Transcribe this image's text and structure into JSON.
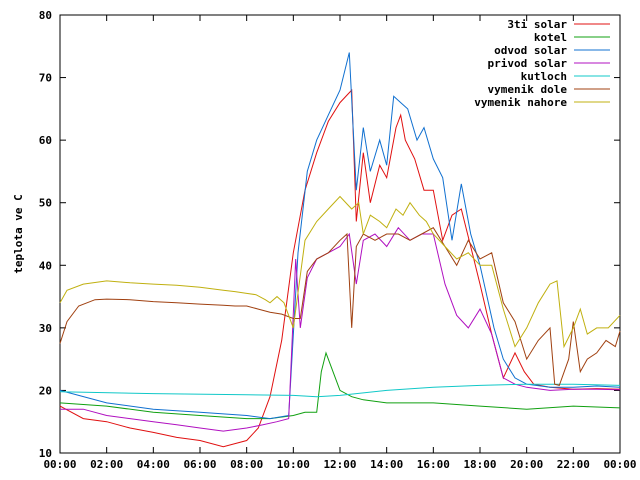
{
  "chart_data": {
    "type": "line",
    "title": "",
    "xlabel": "",
    "ylabel": "teplota ve C",
    "xlim": [
      0,
      24
    ],
    "ylim": [
      10,
      80
    ],
    "x_ticks": [
      "00:00",
      "02:00",
      "04:00",
      "06:00",
      "08:00",
      "10:00",
      "12:00",
      "14:00",
      "16:00",
      "18:00",
      "20:00",
      "22:00",
      "00:00"
    ],
    "y_ticks": [
      10,
      20,
      30,
      40,
      50,
      60,
      70,
      80
    ],
    "grid": false,
    "legend_position": "top-right",
    "series": [
      {
        "name": "3ti solar",
        "color": "#e01010",
        "x": [
          0,
          1,
          2,
          3,
          4,
          5,
          6,
          7,
          8,
          8.5,
          9,
          9.5,
          10,
          10.5,
          11,
          11.5,
          12,
          12.5,
          12.7,
          13,
          13.3,
          13.7,
          14,
          14.4,
          14.6,
          14.8,
          15.2,
          15.6,
          16,
          16.4,
          16.8,
          17.2,
          17.6,
          18,
          18.5,
          19,
          19.5,
          19.9,
          20.3,
          21,
          22,
          23,
          24
        ],
        "y": [
          17.5,
          15.5,
          15,
          14,
          13.3,
          12.5,
          12,
          11,
          12,
          14,
          19,
          28,
          42,
          52,
          58,
          63,
          66,
          68,
          47,
          58,
          50,
          56,
          54,
          62,
          64,
          60,
          57,
          52,
          52,
          44,
          48,
          49,
          43,
          37,
          29,
          22,
          26,
          23,
          21,
          20.5,
          20.2,
          20.3,
          20.2
        ]
      },
      {
        "name": "kotel",
        "color": "#10a010",
        "x": [
          0,
          2,
          4,
          6,
          8,
          9,
          10,
          10.5,
          11,
          11.2,
          11.4,
          11.7,
          12,
          12.5,
          13,
          14,
          16,
          18,
          20,
          22,
          24
        ],
        "y": [
          18,
          17.5,
          16.5,
          16,
          15.5,
          15.5,
          16,
          16.5,
          16.5,
          23,
          26,
          23,
          20,
          19,
          18.5,
          18,
          18,
          17.5,
          17,
          17.5,
          17.2
        ]
      },
      {
        "name": "odvod solar",
        "color": "#1070d0",
        "x": [
          0,
          2,
          4,
          6,
          8,
          9,
          9.8,
          10.2,
          10.6,
          11,
          11.5,
          12,
          12.4,
          12.7,
          13,
          13.3,
          13.7,
          14,
          14.3,
          14.6,
          14.9,
          15.3,
          15.6,
          16,
          16.4,
          16.8,
          17.2,
          17.6,
          18,
          18.6,
          19,
          19.5,
          20,
          21,
          22,
          23,
          24
        ],
        "y": [
          20,
          18,
          17,
          16.5,
          16,
          15.5,
          16,
          42,
          55,
          60,
          64,
          68,
          74,
          52,
          62,
          55,
          60,
          56,
          67,
          66,
          65,
          60,
          62,
          57,
          54,
          44,
          53,
          45,
          40,
          30,
          25,
          22,
          21,
          20.5,
          20.5,
          20.7,
          20.5
        ]
      },
      {
        "name": "privod solar",
        "color": "#b010c0",
        "x": [
          0,
          1,
          2,
          3,
          4,
          5,
          6,
          7,
          8,
          8.7,
          9.3,
          9.8,
          10.1,
          10.3,
          10.6,
          11,
          11.5,
          12,
          12.4,
          12.7,
          13,
          13.5,
          14,
          14.5,
          15,
          15.5,
          16,
          16.5,
          17,
          17.5,
          18,
          18.5,
          19,
          19.5,
          20,
          21,
          22,
          23,
          24
        ],
        "y": [
          17,
          17,
          16,
          15.5,
          15,
          14.5,
          14,
          13.5,
          14,
          14.5,
          15,
          15.5,
          41,
          30,
          38,
          41,
          42,
          43,
          45,
          37,
          44,
          45,
          43,
          46,
          44,
          45,
          45,
          37,
          32,
          30,
          33,
          29,
          22,
          21,
          20.5,
          20,
          20.2,
          20.2,
          20.1
        ]
      },
      {
        "name": "kutloch",
        "color": "#10c8c8",
        "x": [
          0,
          4,
          8,
          10,
          11,
          12,
          14,
          16,
          18,
          20,
          22,
          24
        ],
        "y": [
          19.8,
          19.5,
          19.3,
          19.2,
          19,
          19.2,
          20,
          20.5,
          20.8,
          21,
          21,
          20.8
        ]
      },
      {
        "name": "vymenik dole",
        "color": "#a04010",
        "x": [
          0,
          0.3,
          0.8,
          1.5,
          2,
          3,
          4,
          5,
          6,
          7,
          7.5,
          8,
          8.5,
          9,
          9.5,
          10,
          10.3,
          10.6,
          11,
          11.5,
          12,
          12.3,
          12.5,
          12.7,
          13,
          13.5,
          14,
          14.5,
          15,
          15.5,
          16,
          16.5,
          17,
          17.5,
          18,
          18.5,
          19,
          19.5,
          20,
          20.5,
          21,
          21.2,
          21.4,
          21.8,
          22,
          22.3,
          22.6,
          23,
          23.4,
          23.8,
          24
        ],
        "y": [
          27.5,
          31,
          33.5,
          34.5,
          34.6,
          34.5,
          34.2,
          34,
          33.8,
          33.6,
          33.5,
          33.5,
          33,
          32.5,
          32.2,
          31.5,
          31.5,
          39,
          41,
          42,
          44,
          45,
          30,
          43,
          45,
          44,
          45,
          45,
          44,
          45,
          46,
          43,
          40,
          44,
          41,
          42,
          34,
          31,
          25,
          28,
          30,
          21,
          20.8,
          25,
          31,
          23,
          25,
          26,
          28,
          27,
          29.5
        ]
      },
      {
        "name": "vymenik nahore",
        "color": "#c0b010",
        "x": [
          0,
          0.3,
          1,
          2,
          3,
          4,
          5,
          6,
          7,
          7.5,
          8,
          8.4,
          8.8,
          9,
          9.3,
          9.6,
          10,
          10.5,
          11,
          11.5,
          12,
          12.5,
          12.8,
          13,
          13.3,
          13.7,
          14,
          14.4,
          14.7,
          15,
          15.4,
          15.7,
          16,
          16.5,
          17,
          17.5,
          18,
          18.5,
          19,
          19.5,
          20,
          20.5,
          21,
          21.3,
          21.6,
          22,
          22.3,
          22.6,
          23,
          23.5,
          24
        ],
        "y": [
          34,
          36,
          37,
          37.5,
          37.2,
          37,
          36.8,
          36.5,
          36,
          35.8,
          35.5,
          35.3,
          34.5,
          34,
          35,
          34,
          30,
          44,
          47,
          49,
          51,
          49,
          50,
          45,
          48,
          47,
          46,
          49,
          48,
          50,
          48,
          47,
          45,
          43,
          41,
          42,
          40,
          40,
          33,
          27,
          30,
          34,
          37,
          37.5,
          27,
          30,
          33,
          29,
          30,
          30,
          32
        ]
      }
    ]
  }
}
